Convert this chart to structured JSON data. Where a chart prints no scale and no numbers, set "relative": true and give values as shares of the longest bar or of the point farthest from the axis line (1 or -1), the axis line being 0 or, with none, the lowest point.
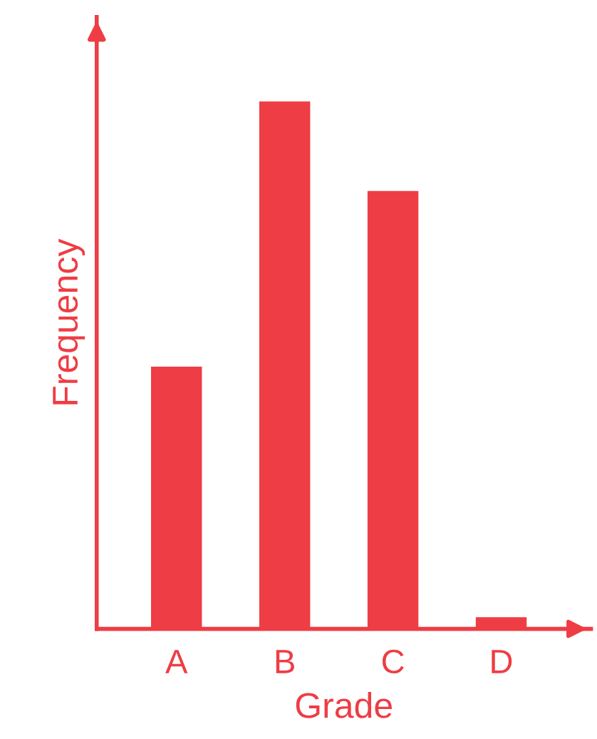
{
  "chart_data": {
    "type": "bar",
    "xlabel": "Grade",
    "ylabel": "Frequency",
    "categories": [
      "A",
      "B",
      "C",
      "D"
    ],
    "values": [
      0.497,
      1,
      0.83,
      0.022
    ],
    "color": "#ee3d44",
    "relative": true,
    "grid": false,
    "legend": false
  }
}
